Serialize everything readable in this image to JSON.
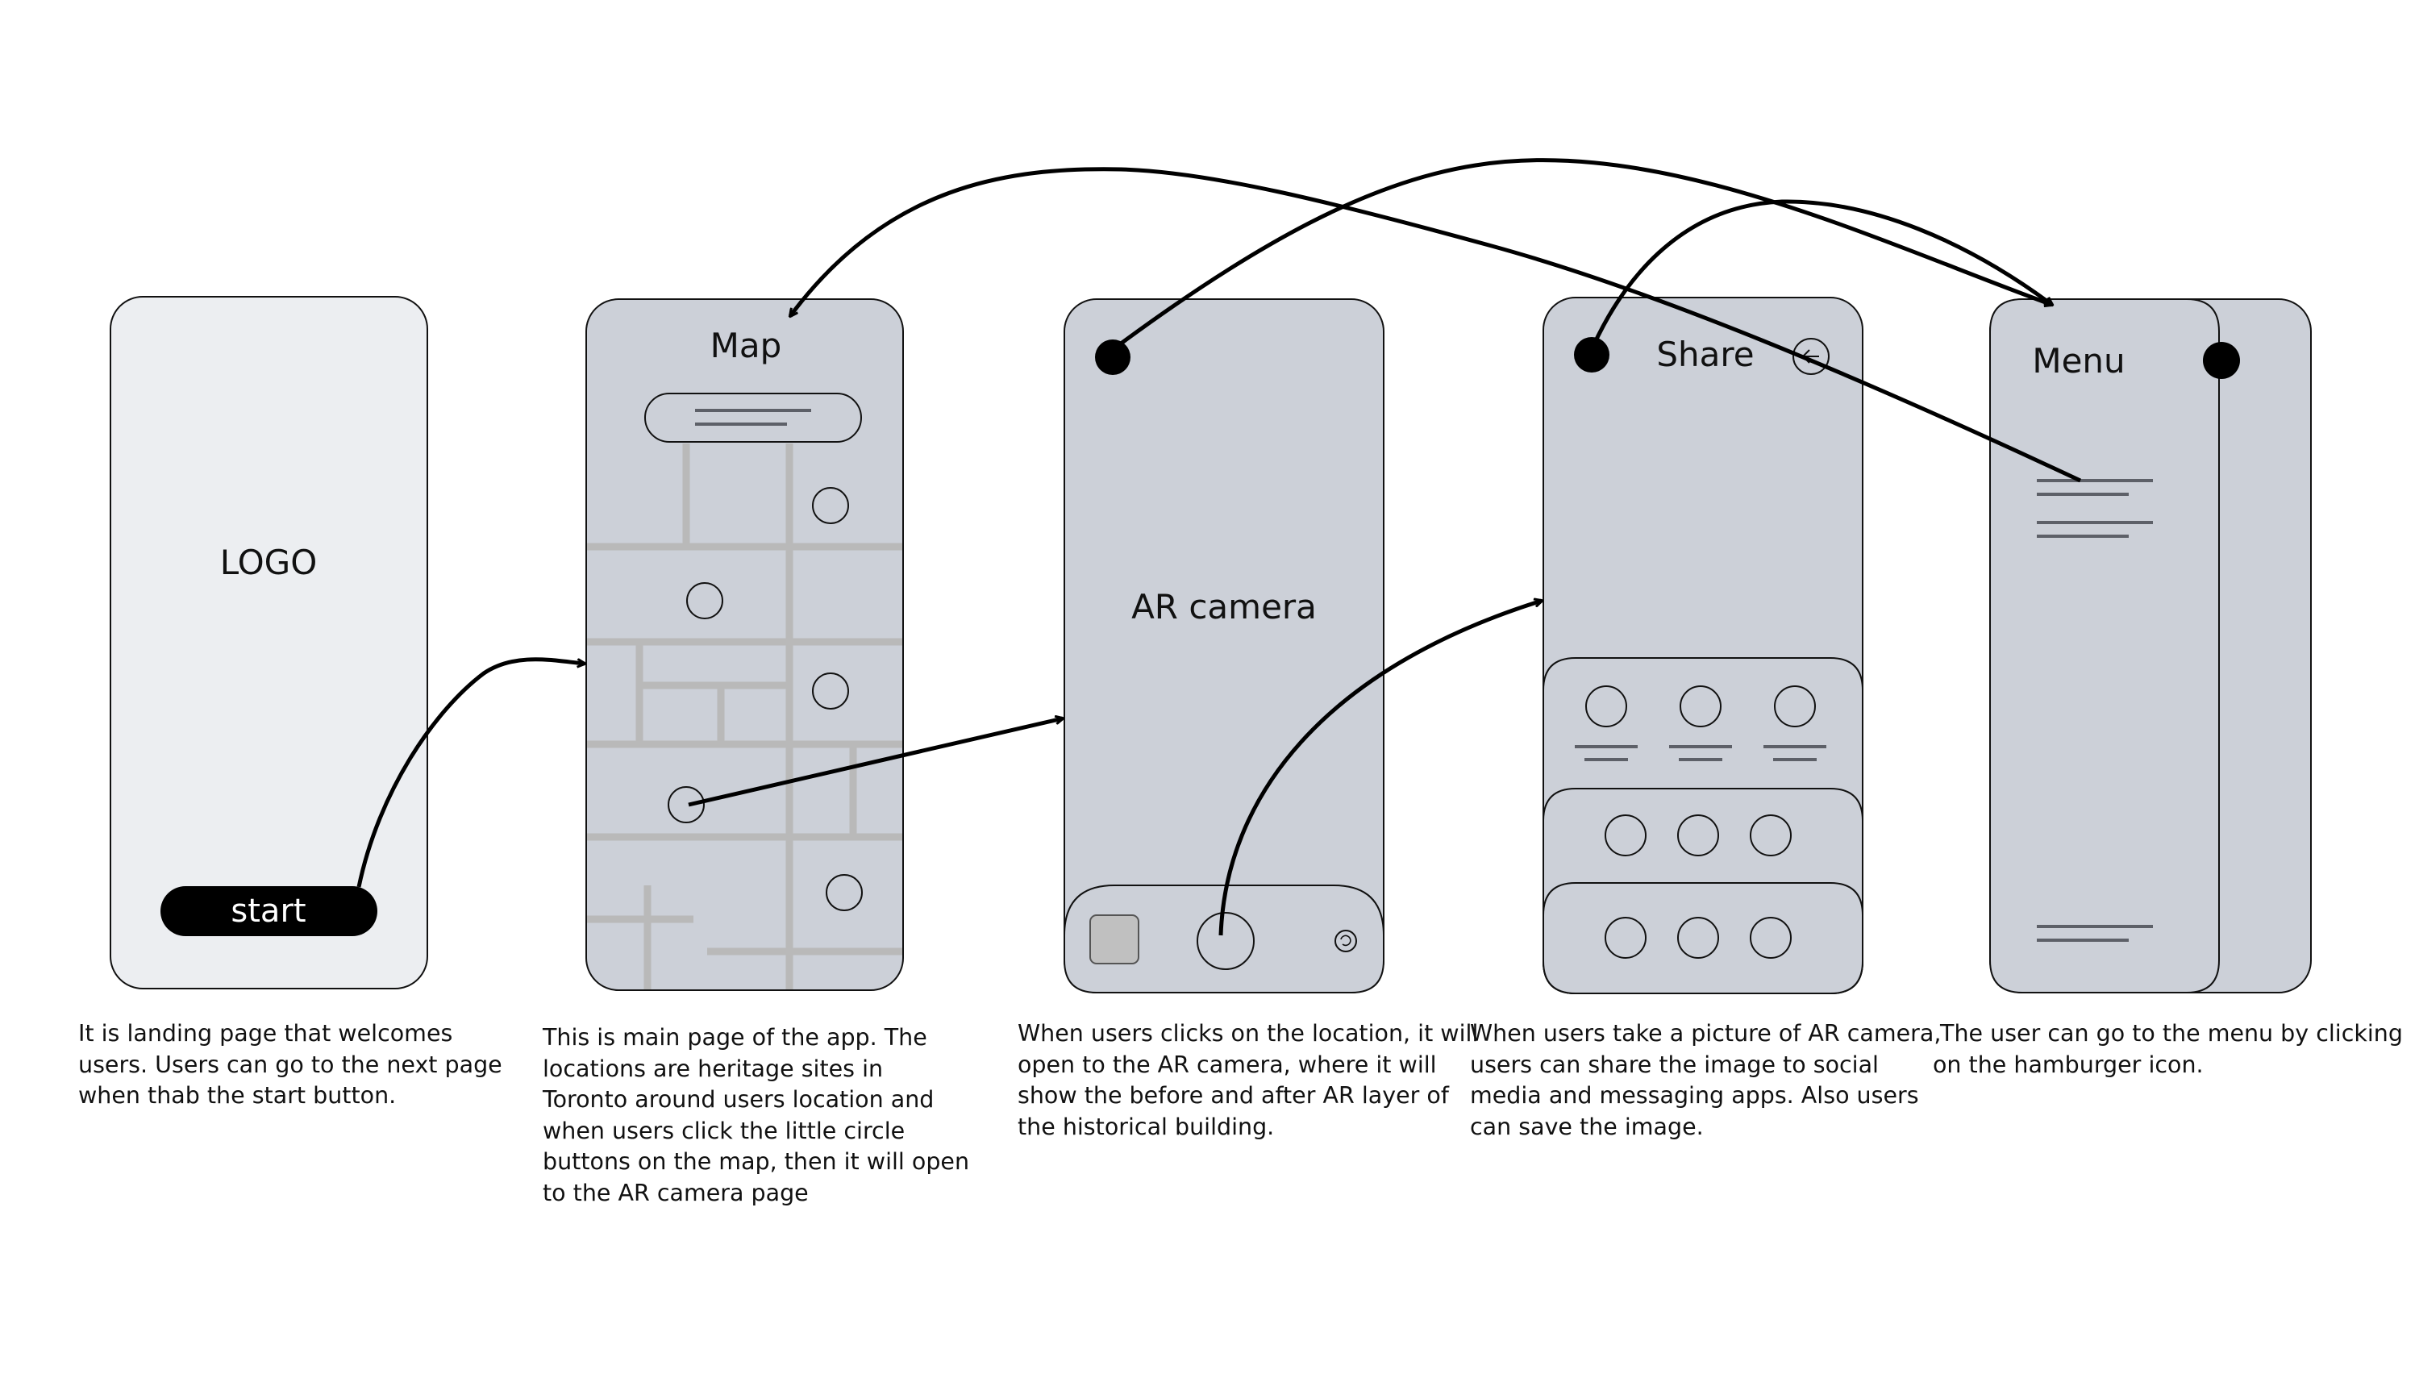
{
  "screens": {
    "landing": {
      "logo": "LOGO",
      "start_button": "start"
    },
    "map": {
      "title": "Map"
    },
    "ar_camera": {
      "title": "AR camera"
    },
    "share": {
      "title": "Share"
    },
    "menu": {
      "title": "Menu"
    }
  },
  "captions": {
    "landing": [
      "It is landing page that welcomes",
      "users. Users can go to the next page",
      "when thab the start button."
    ],
    "map": [
      "This is main page of the app. The",
      "locations are heritage sites in",
      "Toronto around users location and",
      "when users click the little circle",
      "buttons on the map, then it will open",
      "to the AR camera page"
    ],
    "ar_camera": [
      "When users clicks on the location, it will",
      "open to the AR camera, where it will",
      "show the before and after AR layer of",
      "the historical building."
    ],
    "share": [
      "When users take a picture of AR camera,",
      "users can share the image to social",
      "media and messaging apps. Also users",
      "can save the image."
    ],
    "menu": [
      " The user can go to the menu by clicking",
      "on the hamburger icon."
    ]
  },
  "colors": {
    "landing_bg": "#eceef1",
    "screen_bg": "#ccd0d8",
    "map_road": "#b9b9b9",
    "text_line": "#5d6068",
    "button": "#000000",
    "arrow": "#000000"
  }
}
